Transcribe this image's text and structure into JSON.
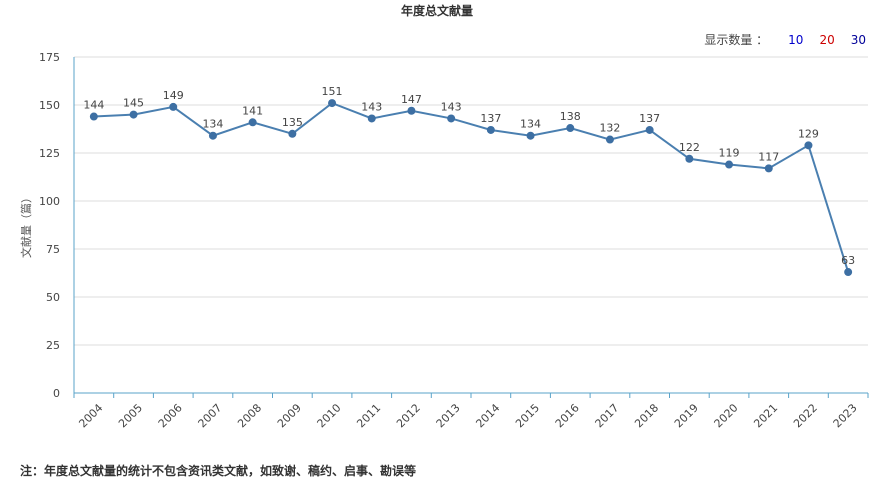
{
  "chart_data": {
    "type": "line",
    "title": "年度总文献量",
    "ylabel": "文献量（篇）",
    "xlabel": "",
    "categories": [
      "2004",
      "2005",
      "2006",
      "2007",
      "2008",
      "2009",
      "2010",
      "2011",
      "2012",
      "2013",
      "2014",
      "2015",
      "2016",
      "2017",
      "2018",
      "2019",
      "2020",
      "2021",
      "2022",
      "2023"
    ],
    "series": [
      {
        "values": [
          144,
          145,
          149,
          134,
          141,
          135,
          151,
          143,
          147,
          143,
          137,
          134,
          138,
          132,
          137,
          122,
          119,
          117,
          129,
          63
        ]
      }
    ],
    "ylim": [
      0,
      175
    ],
    "yticks": [
      0,
      25,
      50,
      75,
      100,
      125,
      150,
      175
    ],
    "grid": true,
    "colors": {
      "line": "#4a7fb0",
      "point": "#3d6fa3",
      "axis": "#5aa3c9",
      "grid": "#dddddd"
    }
  },
  "controls": {
    "label": "显示数量 ：",
    "options": [
      {
        "text": "10",
        "color": "#0000cc"
      },
      {
        "text": "20",
        "color": "#cc0000"
      },
      {
        "text": "30",
        "color": "#000099"
      }
    ]
  },
  "note": "注：年度总文献量的统计不包含资讯类文献，如致谢、稿约、启事、勘误等"
}
